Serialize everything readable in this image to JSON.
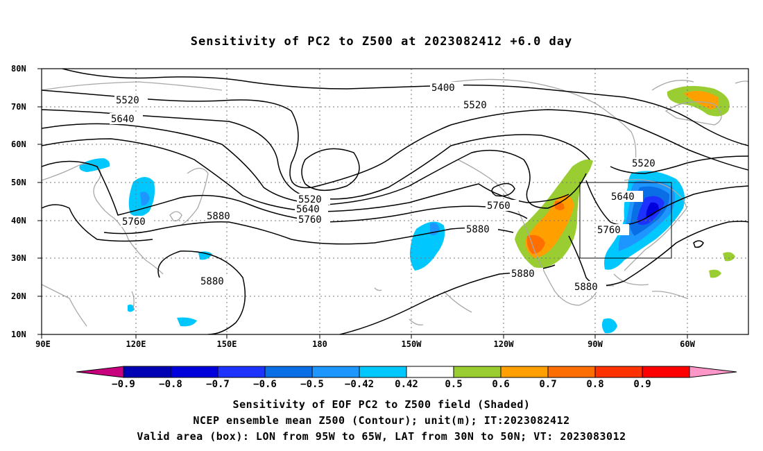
{
  "title": "Sensitivity of PC2 to Z500 at 2023082412 +6.0 day",
  "map": {
    "lat_labels": [
      "80N",
      "70N",
      "60N",
      "50N",
      "40N",
      "30N",
      "20N",
      "10N"
    ],
    "lon_labels": [
      "90E",
      "120E",
      "150E",
      "180",
      "150W",
      "120W",
      "90W",
      "60W"
    ],
    "contour_labels": [
      {
        "text": "5400"
      },
      {
        "text": "5520"
      },
      {
        "text": "5520"
      },
      {
        "text": "5520"
      },
      {
        "text": "5520"
      },
      {
        "text": "5640"
      },
      {
        "text": "5640"
      },
      {
        "text": "5640"
      },
      {
        "text": "5760"
      },
      {
        "text": "5760"
      },
      {
        "text": "5760"
      },
      {
        "text": "5760"
      },
      {
        "text": "5880"
      },
      {
        "text": "5880"
      },
      {
        "text": "5880"
      },
      {
        "text": "5880"
      },
      {
        "text": "5880"
      }
    ],
    "valid_box": {
      "lon_min": "95W",
      "lon_max": "65W",
      "lat_min": "30N",
      "lat_max": "50N"
    }
  },
  "colorbar": {
    "labels": [
      "-0.9",
      "-0.8",
      "-0.7",
      "-0.6",
      "-0.5",
      "-0.42",
      "0.42",
      "0.5",
      "0.6",
      "0.7",
      "0.8",
      "0.9"
    ],
    "colors": [
      "#c8007d",
      "#0000b4",
      "#0000dc",
      "#1e32ff",
      "#0a6ee6",
      "#1e96ff",
      "#00c8ff",
      "#ffffff",
      "#9acd32",
      "#ff9f00",
      "#ff6e00",
      "#ff3200",
      "#ff0000",
      "#ff96c8"
    ]
  },
  "captions": [
    "Sensitivity of EOF PC2 to Z500 field (Shaded)",
    "NCEP ensemble mean Z500 (Contour); unit(m); IT:2023082412",
    "Valid area (box): LON from 95W to 65W, LAT from 30N to 50N; VT: 2023083012"
  ]
}
